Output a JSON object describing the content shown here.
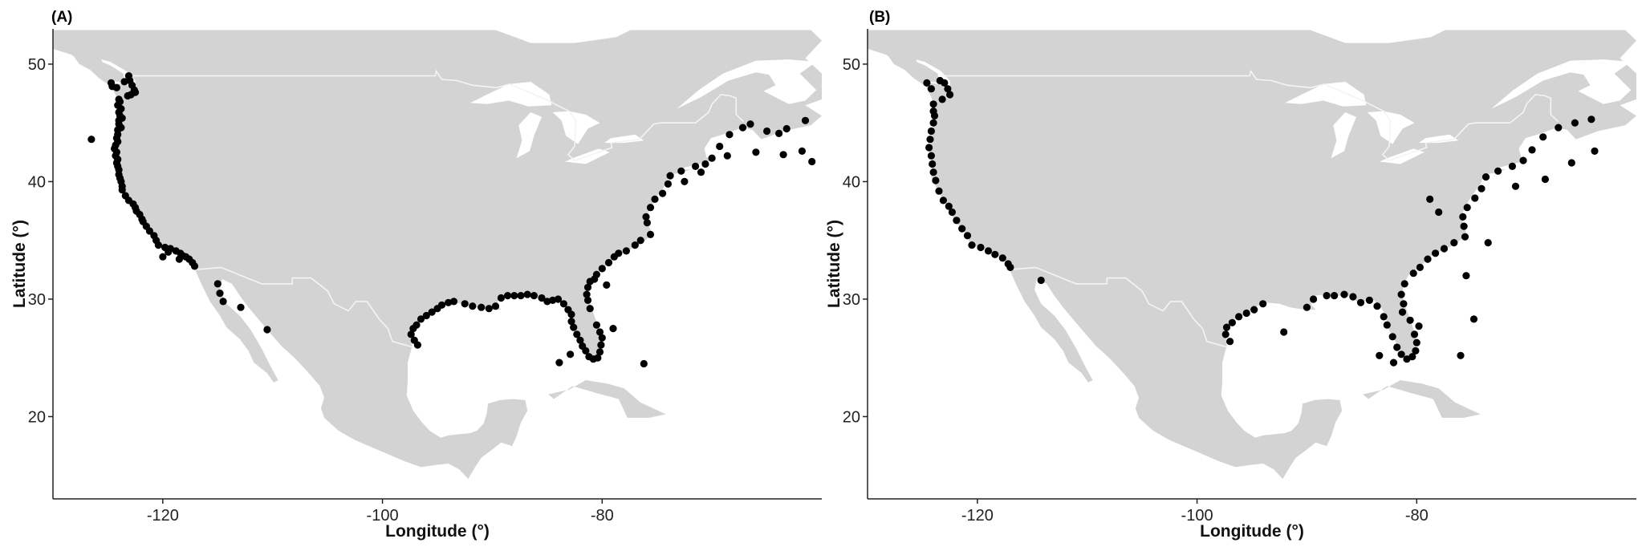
{
  "figure": {
    "background": "#ffffff",
    "land_color": "#d3d3d3",
    "border_color": "#f4f4f4",
    "point_color": "#000000"
  },
  "chart_data": [
    {
      "type": "scatter",
      "panel_label": "(A)",
      "xlabel": "Longitude (°)",
      "ylabel": "Latitude (°)",
      "xlim": [
        -130,
        -60
      ],
      "ylim": [
        13,
        53
      ],
      "xticks": [
        -120,
        -100,
        -80
      ],
      "yticks": [
        20,
        30,
        40,
        50
      ],
      "grid": false,
      "legend": "none",
      "points": [
        [
          -124.7,
          48.4
        ],
        [
          -124.6,
          48.1
        ],
        [
          -124.2,
          48.0
        ],
        [
          -123.5,
          48.5
        ],
        [
          -123.1,
          49.0
        ],
        [
          -123.0,
          48.6
        ],
        [
          -122.8,
          48.2
        ],
        [
          -122.6,
          47.8
        ],
        [
          -122.9,
          47.4
        ],
        [
          -122.5,
          47.6
        ],
        [
          -123.2,
          47.3
        ],
        [
          -124.0,
          47.0
        ],
        [
          -123.9,
          46.8
        ],
        [
          -124.1,
          46.5
        ],
        [
          -123.8,
          46.2
        ],
        [
          -124.0,
          45.9
        ],
        [
          -123.9,
          45.6
        ],
        [
          -123.7,
          45.4
        ],
        [
          -124.0,
          45.2
        ],
        [
          -124.0,
          44.9
        ],
        [
          -123.8,
          44.6
        ],
        [
          -124.1,
          44.4
        ],
        [
          -124.1,
          44.0
        ],
        [
          -124.2,
          43.7
        ],
        [
          -124.1,
          43.4
        ],
        [
          -124.3,
          43.1
        ],
        [
          -124.4,
          42.8
        ],
        [
          -124.2,
          42.5
        ],
        [
          -124.3,
          42.2
        ],
        [
          -124.1,
          41.9
        ],
        [
          -124.2,
          41.6
        ],
        [
          -124.1,
          41.3
        ],
        [
          -124.0,
          41.0
        ],
        [
          -124.0,
          40.6
        ],
        [
          -123.9,
          40.3
        ],
        [
          -123.8,
          40.0
        ],
        [
          -123.7,
          39.6
        ],
        [
          -123.7,
          39.3
        ],
        [
          -123.4,
          38.8
        ],
        [
          -123.1,
          38.4
        ],
        [
          -122.7,
          38.1
        ],
        [
          -122.5,
          37.8
        ],
        [
          -122.4,
          37.5
        ],
        [
          -122.1,
          37.2
        ],
        [
          -121.9,
          36.8
        ],
        [
          -121.8,
          36.6
        ],
        [
          -121.5,
          36.2
        ],
        [
          -121.2,
          35.8
        ],
        [
          -120.8,
          35.4
        ],
        [
          -120.6,
          35.0
        ],
        [
          -120.4,
          34.6
        ],
        [
          -119.8,
          34.4
        ],
        [
          -119.3,
          34.3
        ],
        [
          -118.8,
          34.1
        ],
        [
          -118.4,
          33.9
        ],
        [
          -118.2,
          33.7
        ],
        [
          -117.9,
          33.6
        ],
        [
          -117.6,
          33.4
        ],
        [
          -117.3,
          33.1
        ],
        [
          -117.1,
          32.8
        ],
        [
          -119.5,
          34.0
        ],
        [
          -118.5,
          33.4
        ],
        [
          -120.0,
          33.6
        ],
        [
          -126.5,
          43.6
        ],
        [
          -115.0,
          31.3
        ],
        [
          -114.8,
          30.5
        ],
        [
          -114.5,
          29.8
        ],
        [
          -112.9,
          29.3
        ],
        [
          -110.5,
          27.4
        ],
        [
          -97.2,
          27.5
        ],
        [
          -97.4,
          27.0
        ],
        [
          -97.1,
          26.5
        ],
        [
          -96.8,
          26.1
        ],
        [
          -96.9,
          27.8
        ],
        [
          -96.5,
          28.3
        ],
        [
          -96.0,
          28.6
        ],
        [
          -95.5,
          28.9
        ],
        [
          -95.0,
          29.2
        ],
        [
          -94.6,
          29.5
        ],
        [
          -94.0,
          29.7
        ],
        [
          -93.5,
          29.8
        ],
        [
          -92.5,
          29.6
        ],
        [
          -91.8,
          29.4
        ],
        [
          -91.0,
          29.3
        ],
        [
          -90.3,
          29.2
        ],
        [
          -89.7,
          29.4
        ],
        [
          -89.2,
          30.1
        ],
        [
          -88.6,
          30.3
        ],
        [
          -88.0,
          30.3
        ],
        [
          -87.4,
          30.3
        ],
        [
          -86.8,
          30.4
        ],
        [
          -86.2,
          30.3
        ],
        [
          -85.5,
          30.1
        ],
        [
          -85.0,
          29.8
        ],
        [
          -84.5,
          29.9
        ],
        [
          -84.0,
          30.0
        ],
        [
          -83.5,
          29.6
        ],
        [
          -83.1,
          29.1
        ],
        [
          -82.8,
          28.7
        ],
        [
          -82.8,
          28.1
        ],
        [
          -82.6,
          27.6
        ],
        [
          -82.3,
          27.0
        ],
        [
          -82.0,
          26.5
        ],
        [
          -81.8,
          26.0
        ],
        [
          -81.5,
          25.6
        ],
        [
          -81.2,
          25.1
        ],
        [
          -80.8,
          24.9
        ],
        [
          -80.4,
          25.0
        ],
        [
          -80.2,
          25.5
        ],
        [
          -80.1,
          26.1
        ],
        [
          -80.0,
          26.7
        ],
        [
          -80.2,
          27.2
        ],
        [
          -80.5,
          27.8
        ],
        [
          -81.1,
          29.2
        ],
        [
          -81.3,
          29.9
        ],
        [
          -81.4,
          30.4
        ],
        [
          -81.3,
          31.0
        ],
        [
          -81.1,
          31.5
        ],
        [
          -80.5,
          32.1
        ],
        [
          -80.0,
          32.6
        ],
        [
          -79.4,
          33.1
        ],
        [
          -78.9,
          33.6
        ],
        [
          -78.5,
          33.9
        ],
        [
          -77.8,
          34.1
        ],
        [
          -77.0,
          34.6
        ],
        [
          -76.5,
          35.0
        ],
        [
          -75.6,
          35.5
        ],
        [
          -75.9,
          36.5
        ],
        [
          -76.0,
          37.0
        ],
        [
          -75.6,
          37.8
        ],
        [
          -75.2,
          38.5
        ],
        [
          -74.5,
          39.0
        ],
        [
          -74.0,
          39.8
        ],
        [
          -73.8,
          40.5
        ],
        [
          -72.8,
          40.9
        ],
        [
          -71.5,
          41.3
        ],
        [
          -70.6,
          41.5
        ],
        [
          -70.0,
          42.0
        ],
        [
          -69.3,
          43.0
        ],
        [
          -68.4,
          44.0
        ],
        [
          -67.2,
          44.6
        ],
        [
          -66.5,
          44.9
        ],
        [
          -65.0,
          44.3
        ],
        [
          -63.9,
          44.1
        ],
        [
          -63.2,
          44.5
        ],
        [
          -61.5,
          45.2
        ],
        [
          -68.6,
          42.2
        ],
        [
          -66.0,
          42.5
        ],
        [
          -63.5,
          42.3
        ],
        [
          -61.8,
          42.6
        ],
        [
          -60.9,
          41.7
        ],
        [
          -71.0,
          40.8
        ],
        [
          -72.5,
          40.0
        ],
        [
          -76.2,
          24.5
        ],
        [
          -79.0,
          27.5
        ],
        [
          -83.9,
          24.6
        ],
        [
          -82.9,
          25.3
        ],
        [
          -79.6,
          31.2
        ],
        [
          -80.7,
          31.7
        ]
      ]
    },
    {
      "type": "scatter",
      "panel_label": "(B)",
      "xlabel": "Longitude (°)",
      "ylabel": "Latitude (°)",
      "xlim": [
        -130,
        -60
      ],
      "ylim": [
        13,
        53
      ],
      "xticks": [
        -120,
        -100,
        -80
      ],
      "yticks": [
        20,
        30,
        40,
        50
      ],
      "grid": false,
      "legend": "none",
      "points": [
        [
          -124.6,
          48.4
        ],
        [
          -124.2,
          47.9
        ],
        [
          -123.4,
          48.6
        ],
        [
          -123.0,
          48.4
        ],
        [
          -122.7,
          47.9
        ],
        [
          -122.5,
          47.4
        ],
        [
          -123.2,
          47.0
        ],
        [
          -124.0,
          46.6
        ],
        [
          -124.0,
          46.0
        ],
        [
          -123.9,
          45.6
        ],
        [
          -124.0,
          45.0
        ],
        [
          -124.2,
          44.3
        ],
        [
          -124.3,
          43.6
        ],
        [
          -124.4,
          42.9
        ],
        [
          -124.2,
          42.2
        ],
        [
          -124.1,
          41.5
        ],
        [
          -124.0,
          40.8
        ],
        [
          -123.8,
          40.1
        ],
        [
          -123.5,
          39.2
        ],
        [
          -123.1,
          38.4
        ],
        [
          -122.6,
          37.9
        ],
        [
          -122.3,
          37.4
        ],
        [
          -121.9,
          36.7
        ],
        [
          -121.4,
          36.0
        ],
        [
          -120.9,
          35.4
        ],
        [
          -120.5,
          34.6
        ],
        [
          -119.7,
          34.4
        ],
        [
          -119.0,
          34.1
        ],
        [
          -118.4,
          33.8
        ],
        [
          -117.7,
          33.5
        ],
        [
          -117.2,
          33.0
        ],
        [
          -117.0,
          32.7
        ],
        [
          -114.2,
          31.6
        ],
        [
          -97.3,
          27.6
        ],
        [
          -97.4,
          27.0
        ],
        [
          -97.0,
          26.4
        ],
        [
          -96.8,
          28.0
        ],
        [
          -96.2,
          28.5
        ],
        [
          -95.5,
          28.8
        ],
        [
          -94.8,
          29.1
        ],
        [
          -94.0,
          29.6
        ],
        [
          -92.1,
          27.2
        ],
        [
          -90.0,
          29.3
        ],
        [
          -89.4,
          30.0
        ],
        [
          -88.2,
          30.3
        ],
        [
          -87.5,
          30.3
        ],
        [
          -86.6,
          30.4
        ],
        [
          -85.8,
          30.2
        ],
        [
          -85.1,
          29.7
        ],
        [
          -84.3,
          29.9
        ],
        [
          -83.6,
          29.4
        ],
        [
          -83.0,
          28.5
        ],
        [
          -82.7,
          27.8
        ],
        [
          -82.2,
          26.8
        ],
        [
          -81.8,
          25.9
        ],
        [
          -81.4,
          25.3
        ],
        [
          -80.9,
          24.9
        ],
        [
          -80.4,
          25.1
        ],
        [
          -80.1,
          25.6
        ],
        [
          -80.0,
          26.3
        ],
        [
          -80.2,
          27.0
        ],
        [
          -80.6,
          28.2
        ],
        [
          -81.2,
          29.6
        ],
        [
          -81.4,
          30.4
        ],
        [
          -81.1,
          31.3
        ],
        [
          -80.3,
          32.2
        ],
        [
          -79.7,
          32.7
        ],
        [
          -79.0,
          33.4
        ],
        [
          -78.3,
          33.9
        ],
        [
          -77.5,
          34.3
        ],
        [
          -76.6,
          34.8
        ],
        [
          -75.6,
          35.3
        ],
        [
          -75.7,
          36.2
        ],
        [
          -75.8,
          37.0
        ],
        [
          -75.4,
          37.8
        ],
        [
          -74.7,
          38.6
        ],
        [
          -74.1,
          39.4
        ],
        [
          -73.7,
          40.4
        ],
        [
          -72.6,
          40.9
        ],
        [
          -71.3,
          41.3
        ],
        [
          -70.3,
          41.8
        ],
        [
          -69.5,
          42.7
        ],
        [
          -68.5,
          43.8
        ],
        [
          -67.1,
          44.6
        ],
        [
          -65.6,
          45.0
        ],
        [
          -64.1,
          45.3
        ],
        [
          -63.8,
          42.6
        ],
        [
          -65.9,
          41.6
        ],
        [
          -68.3,
          40.2
        ],
        [
          -71.0,
          39.6
        ],
        [
          -73.5,
          34.8
        ],
        [
          -75.5,
          32.0
        ],
        [
          -76.0,
          25.2
        ],
        [
          -74.8,
          28.3
        ],
        [
          -79.8,
          27.7
        ],
        [
          -83.4,
          25.2
        ],
        [
          -82.1,
          24.6
        ],
        [
          -81.3,
          28.9
        ],
        [
          -78.8,
          38.5
        ],
        [
          -78.0,
          37.4
        ]
      ]
    }
  ]
}
